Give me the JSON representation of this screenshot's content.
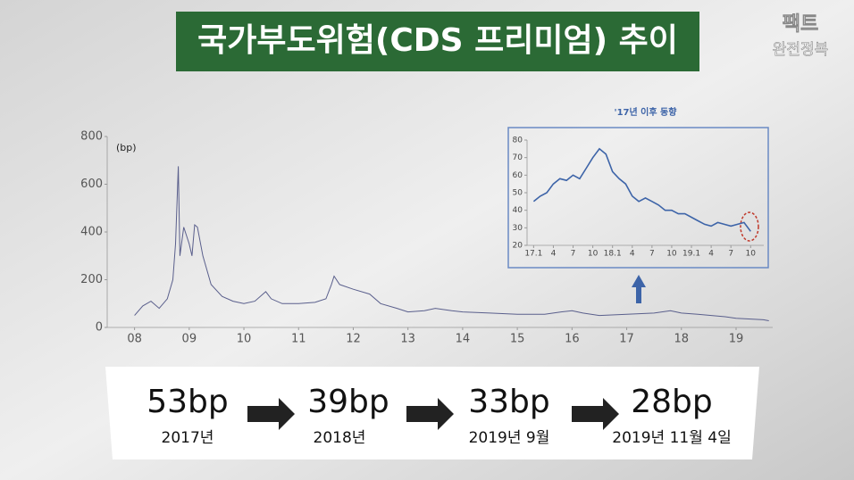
{
  "title": "국가부도위험(CDS 프리미엄) 추이",
  "logo": {
    "top": "팩트",
    "bottom": "완전정복"
  },
  "chart_data": [
    {
      "type": "line",
      "y_label": "(bp)",
      "color": "#5a5f8c",
      "xlim": [
        2007.5,
        2019.67
      ],
      "ylim": [
        0,
        800
      ],
      "xticks": [
        {
          "value": 2008,
          "label": "08"
        },
        {
          "value": 2009,
          "label": "09"
        },
        {
          "value": 2010,
          "label": "10"
        },
        {
          "value": 2011,
          "label": "11"
        },
        {
          "value": 2012,
          "label": "12"
        },
        {
          "value": 2013,
          "label": "13"
        },
        {
          "value": 2014,
          "label": "14"
        },
        {
          "value": 2015,
          "label": "15"
        },
        {
          "value": 2016,
          "label": "16"
        },
        {
          "value": 2017,
          "label": "17"
        },
        {
          "value": 2018,
          "label": "18"
        },
        {
          "value": 2019,
          "label": "19"
        }
      ],
      "yticks": [
        0,
        200,
        400,
        600,
        800
      ],
      "x": [
        2008.0,
        2008.15,
        2008.3,
        2008.45,
        2008.6,
        2008.7,
        2008.75,
        2008.8,
        2008.83,
        2008.9,
        2009.0,
        2009.05,
        2009.1,
        2009.15,
        2009.25,
        2009.4,
        2009.6,
        2009.8,
        2010.0,
        2010.2,
        2010.4,
        2010.5,
        2010.7,
        2011.0,
        2011.3,
        2011.5,
        2011.6,
        2011.65,
        2011.75,
        2012.0,
        2012.3,
        2012.5,
        2012.8,
        2013.0,
        2013.3,
        2013.5,
        2013.8,
        2014.0,
        2014.5,
        2015.0,
        2015.5,
        2015.8,
        2016.0,
        2016.2,
        2016.5,
        2017.0,
        2017.5,
        2017.8,
        2018.0,
        2018.3,
        2018.8,
        2019.0,
        2019.5,
        2019.6
      ],
      "values": [
        50,
        90,
        110,
        80,
        120,
        200,
        350,
        675,
        300,
        420,
        350,
        300,
        430,
        420,
        300,
        180,
        130,
        110,
        100,
        110,
        150,
        120,
        100,
        100,
        105,
        120,
        180,
        215,
        180,
        160,
        140,
        100,
        80,
        65,
        70,
        80,
        70,
        65,
        60,
        55,
        55,
        65,
        70,
        60,
        50,
        55,
        60,
        70,
        60,
        55,
        45,
        38,
        32,
        28
      ]
    },
    {
      "type": "line",
      "title": "'17년 이후 동향",
      "color": "#3d64a8",
      "xlim": [
        -1,
        35
      ],
      "ylim": [
        20,
        80
      ],
      "xticks": [
        {
          "value": 0,
          "label": "17.1"
        },
        {
          "value": 3,
          "label": "4"
        },
        {
          "value": 6,
          "label": "7"
        },
        {
          "value": 9,
          "label": "10"
        },
        {
          "value": 12,
          "label": "18.1"
        },
        {
          "value": 15,
          "label": "4"
        },
        {
          "value": 18,
          "label": "7"
        },
        {
          "value": 21,
          "label": "10"
        },
        {
          "value": 24,
          "label": "19.1"
        },
        {
          "value": 27,
          "label": "4"
        },
        {
          "value": 30,
          "label": "7"
        },
        {
          "value": 33,
          "label": "10"
        }
      ],
      "yticks": [
        20,
        30,
        40,
        50,
        60,
        70,
        80
      ],
      "x": [
        0,
        1,
        2,
        3,
        4,
        5,
        6,
        7,
        8,
        9,
        10,
        11,
        12,
        13,
        14,
        15,
        16,
        17,
        18,
        19,
        20,
        21,
        22,
        23,
        24,
        25,
        26,
        27,
        28,
        29,
        30,
        31,
        32,
        33
      ],
      "values": [
        45,
        48,
        50,
        55,
        58,
        57,
        60,
        58,
        64,
        70,
        75,
        72,
        62,
        58,
        55,
        48,
        45,
        47,
        45,
        43,
        40,
        40,
        38,
        38,
        36,
        34,
        32,
        31,
        33,
        32,
        31,
        32,
        33,
        28
      ]
    }
  ],
  "summary": [
    {
      "value": "53bp",
      "label": "2017년"
    },
    {
      "value": "39bp",
      "label": "2018년"
    },
    {
      "value": "33bp",
      "label": "2019년 9월"
    },
    {
      "value": "28bp",
      "label": "2019년 11월 4일"
    }
  ]
}
